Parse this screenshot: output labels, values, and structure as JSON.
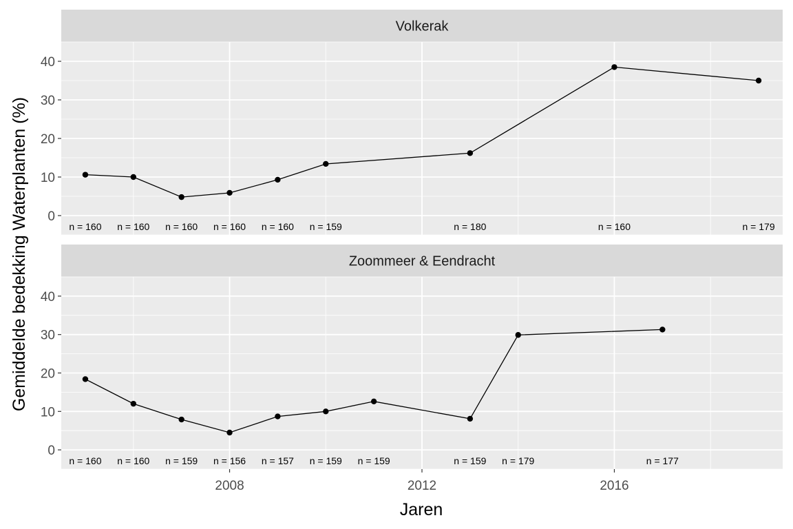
{
  "chart_data": {
    "type": "line",
    "xlabel": "Jaren",
    "ylabel": "Gemiddelde bedekking Waterplanten (%)",
    "xlim": [
      2004.5,
      2019.5
    ],
    "ylim": [
      -5,
      45
    ],
    "x_ticks": [
      2008,
      2012,
      2016
    ],
    "y_ticks": [
      0,
      10,
      20,
      30,
      40
    ],
    "grid": true,
    "panels": [
      {
        "title": "Volkerak",
        "points": [
          {
            "x": 2005,
            "y": 10.6,
            "n": "n = 160"
          },
          {
            "x": 2006,
            "y": 10.0,
            "n": "n = 160"
          },
          {
            "x": 2007,
            "y": 4.8,
            "n": "n = 160"
          },
          {
            "x": 2008,
            "y": 5.9,
            "n": "n = 160"
          },
          {
            "x": 2009,
            "y": 9.3,
            "n": "n = 160"
          },
          {
            "x": 2010,
            "y": 13.4,
            "n": "n = 159"
          },
          {
            "x": 2013,
            "y": 16.2,
            "n": "n = 180"
          },
          {
            "x": 2016,
            "y": 38.5,
            "n": "n = 160"
          },
          {
            "x": 2019,
            "y": 35.0,
            "n": "n = 179"
          }
        ]
      },
      {
        "title": "Zoommeer & Eendracht",
        "points": [
          {
            "x": 2005,
            "y": 18.4,
            "n": "n = 160"
          },
          {
            "x": 2006,
            "y": 12.0,
            "n": "n = 160"
          },
          {
            "x": 2007,
            "y": 7.9,
            "n": "n = 159"
          },
          {
            "x": 2008,
            "y": 4.5,
            "n": "n = 156"
          },
          {
            "x": 2009,
            "y": 8.7,
            "n": "n = 157"
          },
          {
            "x": 2010,
            "y": 10.0,
            "n": "n = 159"
          },
          {
            "x": 2011,
            "y": 12.6,
            "n": "n = 159"
          },
          {
            "x": 2013,
            "y": 8.1,
            "n": "n = 159"
          },
          {
            "x": 2014,
            "y": 29.9,
            "n": "n = 179"
          },
          {
            "x": 2017,
            "y": 31.3,
            "n": "n = 177"
          }
        ]
      }
    ]
  }
}
